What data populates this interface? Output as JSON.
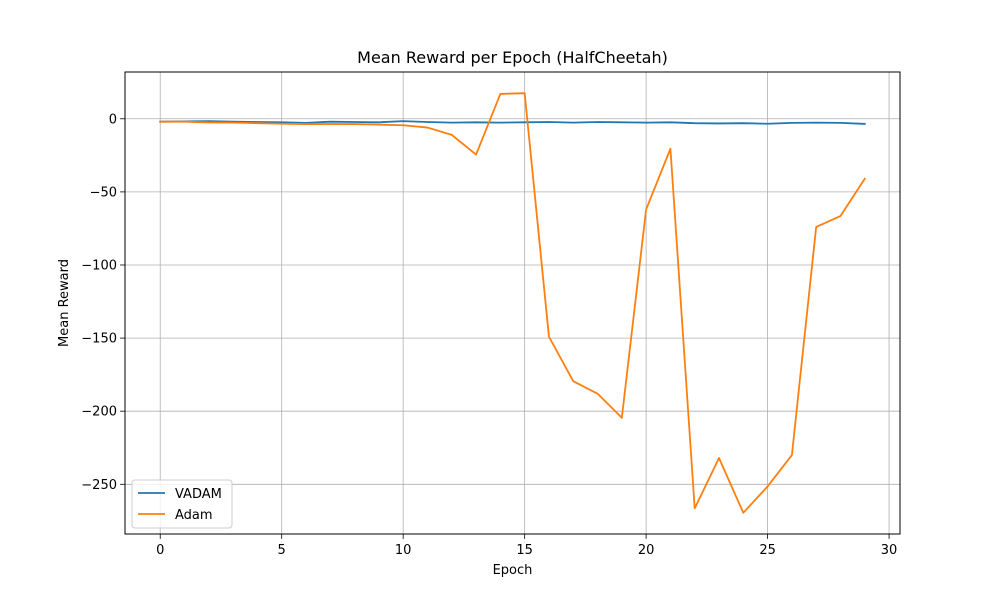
{
  "chart_data": {
    "type": "line",
    "title": "Mean Reward per Epoch (HalfCheetah)",
    "xlabel": "Epoch",
    "ylabel": "Mean Reward",
    "xlim": [
      -1.45,
      30.45
    ],
    "ylim": [
      -284,
      32
    ],
    "x_ticks": [
      0,
      5,
      10,
      15,
      20,
      25,
      30
    ],
    "y_ticks": [
      0,
      -50,
      -100,
      -150,
      -200,
      -250
    ],
    "x_tick_labels": [
      "0",
      "5",
      "10",
      "15",
      "20",
      "25",
      "30"
    ],
    "y_tick_labels": [
      "0",
      "−50",
      "−100",
      "−150",
      "−200",
      "−250"
    ],
    "grid": true,
    "legend_position": "lower-left",
    "x": [
      0,
      1,
      2,
      3,
      4,
      5,
      6,
      7,
      8,
      9,
      10,
      11,
      12,
      13,
      14,
      15,
      16,
      17,
      18,
      19,
      20,
      21,
      22,
      23,
      24,
      25,
      26,
      27,
      28,
      29
    ],
    "series": [
      {
        "name": "VADAM",
        "color": "#1f77b4",
        "values": [
          -2.0,
          -1.8,
          -1.6,
          -2.0,
          -2.2,
          -2.4,
          -2.8,
          -2.0,
          -2.2,
          -2.4,
          -1.6,
          -2.2,
          -2.6,
          -2.4,
          -2.6,
          -2.4,
          -2.2,
          -2.6,
          -2.2,
          -2.4,
          -2.6,
          -2.4,
          -3.0,
          -3.2,
          -3.0,
          -3.4,
          -2.8,
          -2.6,
          -2.8,
          -3.5
        ]
      },
      {
        "name": "Adam",
        "color": "#ff7f0e",
        "values": [
          -2.0,
          -2.0,
          -2.5,
          -2.6,
          -3.0,
          -3.4,
          -3.6,
          -3.6,
          -3.6,
          -4.0,
          -4.4,
          -6.0,
          -11.0,
          -24.5,
          17.0,
          17.5,
          -149.0,
          -179.5,
          -188.0,
          -204.5,
          -62.0,
          -20.5,
          -266.5,
          -232.0,
          -269.5,
          -251.5,
          -230.0,
          -74.0,
          -66.5,
          -41.0
        ]
      }
    ]
  }
}
